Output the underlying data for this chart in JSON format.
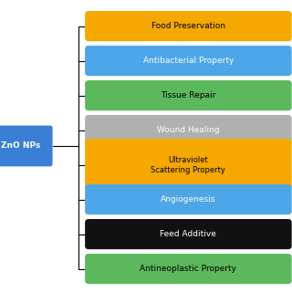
{
  "center_label": "ZnO NPs",
  "center_color": "#3a7fd5",
  "center_text_color": "#ffffff",
  "items": [
    {
      "label": "Food Preservation",
      "color": "#f5a800",
      "text_color": "#000000",
      "multiline": false
    },
    {
      "label": "Antibacterial Property",
      "color": "#4da6e8",
      "text_color": "#ffffff",
      "multiline": false
    },
    {
      "label": "Tissue Repair",
      "color": "#5cb85c",
      "text_color": "#000000",
      "multiline": false
    },
    {
      "label": "Wound Healing",
      "color": "#b0b0b0",
      "text_color": "#ffffff",
      "multiline": false
    },
    {
      "label": "Ultraviolet\nScattering Property",
      "color": "#f5a800",
      "text_color": "#000000",
      "multiline": true
    },
    {
      "label": "Angiogenesis",
      "color": "#4da6e8",
      "text_color": "#ffffff",
      "multiline": false
    },
    {
      "label": "Feed Additive",
      "color": "#111111",
      "text_color": "#ffffff",
      "multiline": false
    },
    {
      "label": "Antineoplastic Property",
      "color": "#5cb85c",
      "text_color": "#000000",
      "multiline": false
    }
  ],
  "background_color": "#ffffff",
  "line_color": "#000000",
  "fig_width": 3.2,
  "fig_height": 3.2,
  "dpi": 100
}
